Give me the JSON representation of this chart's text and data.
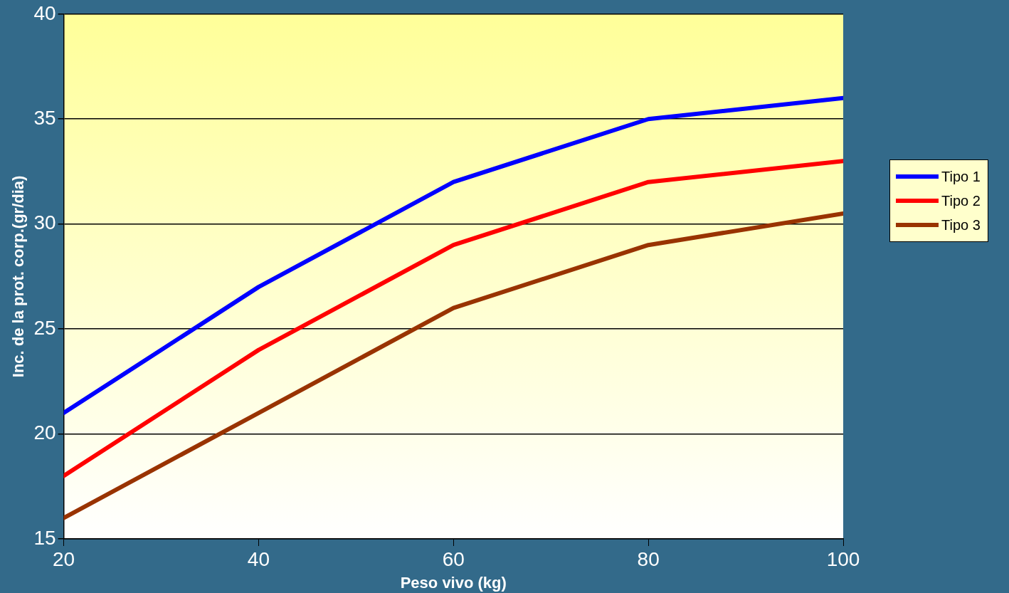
{
  "chart_data": {
    "type": "line",
    "xlabel": "Peso vivo (kg)",
    "ylabel": "Inc. de la prot. corp.(gr/dia)",
    "x": [
      20,
      40,
      60,
      80,
      100
    ],
    "series": [
      {
        "name": "Tipo 1",
        "color": "#0000ff",
        "values": [
          21,
          27,
          32,
          35,
          36
        ]
      },
      {
        "name": "Tipo 2",
        "color": "#ff0000",
        "values": [
          18,
          24,
          29,
          32,
          33
        ]
      },
      {
        "name": "Tipo 3",
        "color": "#993300",
        "values": [
          16,
          21,
          26,
          29,
          30.5
        ]
      }
    ],
    "xlim": [
      20,
      100
    ],
    "xticks": [
      20,
      40,
      60,
      80,
      100
    ],
    "ylim": [
      15,
      40
    ],
    "yticks": [
      15,
      20,
      25,
      30,
      35,
      40
    ],
    "grid": "y",
    "legend": "right",
    "marker": "none",
    "line_style": "solid"
  }
}
